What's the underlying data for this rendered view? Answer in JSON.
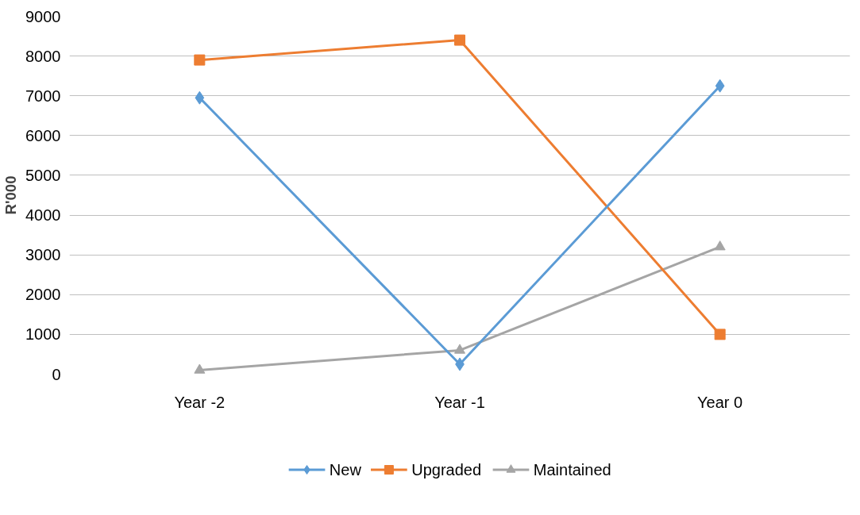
{
  "chart_data": {
    "type": "line",
    "ylabel": "R'000",
    "categories": [
      "Year -2",
      "Year -1",
      "Year 0"
    ],
    "series": [
      {
        "name": "New",
        "color": "#5b9bd5",
        "values": [
          6950,
          250,
          7250
        ],
        "marker": "diamond"
      },
      {
        "name": "Upgraded",
        "color": "#ed7d31",
        "values": [
          7900,
          8400,
          1000
        ],
        "marker": "square"
      },
      {
        "name": "Maintained",
        "color": "#a5a5a5",
        "values": [
          100,
          600,
          3200
        ],
        "marker": "triangle"
      }
    ],
    "ylim": [
      0,
      9000
    ],
    "yticks": [
      0,
      1000,
      2000,
      3000,
      4000,
      5000,
      6000,
      7000,
      8000,
      9000
    ],
    "grid": "y",
    "legend": "bottom",
    "line_style": "solid"
  }
}
